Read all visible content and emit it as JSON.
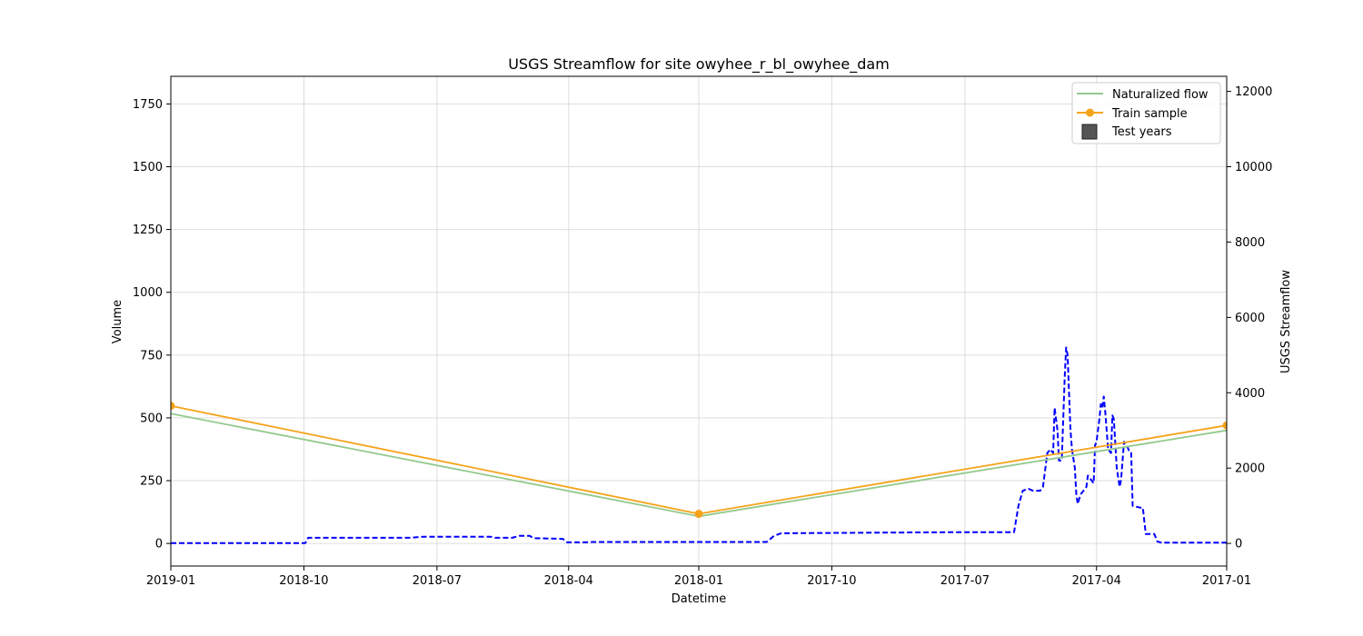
{
  "chart_data": {
    "type": "line",
    "title": "USGS Streamflow for site owyhee_r_bl_owyhee_dam",
    "xlabel": "Datetime",
    "ylabel": "Volume",
    "y2label": "USGS Streamflow",
    "x_axis_inverted": true,
    "xlim": [
      "2019-01-01",
      "2017-01-01"
    ],
    "ylim": [
      -90,
      1860
    ],
    "y2lim": [
      -600,
      12400
    ],
    "grid": true,
    "legend_position": "top-right",
    "x_ticks": [
      "2019-01",
      "2018-10",
      "2018-07",
      "2018-04",
      "2018-01",
      "2017-10",
      "2017-07",
      "2017-04",
      "2017-01"
    ],
    "y_ticks": [
      0,
      250,
      500,
      750,
      1000,
      1250,
      1500,
      1750
    ],
    "y2_ticks": [
      0,
      2000,
      4000,
      6000,
      8000,
      10000,
      12000
    ],
    "series": [
      {
        "name": "Naturalized flow",
        "axis": "left",
        "color": "#93c98c",
        "style": "solid",
        "points": [
          [
            "2019-01-01",
            517
          ],
          [
            "2018-01-01",
            108
          ],
          [
            "2017-01-01",
            450
          ]
        ]
      },
      {
        "name": "Train sample",
        "axis": "left",
        "color": "#f5a31a",
        "style": "solid-markers",
        "points": [
          [
            "2019-01-01",
            548
          ],
          [
            "2018-01-01",
            118
          ],
          [
            "2017-01-01",
            470
          ]
        ]
      },
      {
        "name": "Test years",
        "axis": "none",
        "color": "#555555",
        "style": "patch",
        "points": []
      },
      {
        "axis": "right",
        "color": "#0000ff",
        "style": "dashed",
        "points": [
          [
            "2019-01-01",
            10
          ],
          [
            "2018-09-30",
            10
          ],
          [
            "2018-09-28",
            150
          ],
          [
            "2018-07-20",
            150
          ],
          [
            "2018-07-10",
            180
          ],
          [
            "2018-05-25",
            180
          ],
          [
            "2018-05-22",
            150
          ],
          [
            "2018-05-10",
            150
          ],
          [
            "2018-05-05",
            200
          ],
          [
            "2018-04-28",
            200
          ],
          [
            "2018-04-25",
            140
          ],
          [
            "2018-04-05",
            120
          ],
          [
            "2018-04-02",
            30
          ],
          [
            "2018-03-20",
            30
          ],
          [
            "2018-03-15",
            40
          ],
          [
            "2018-01-01",
            40
          ],
          [
            "2017-11-15",
            40
          ],
          [
            "2017-11-10",
            200
          ],
          [
            "2017-11-05",
            270
          ],
          [
            "2017-07-05",
            300
          ],
          [
            "2017-06-01",
            300
          ],
          [
            "2017-05-28",
            300
          ],
          [
            "2017-05-25",
            1000
          ],
          [
            "2017-05-22",
            1400
          ],
          [
            "2017-05-18",
            1450
          ],
          [
            "2017-05-15",
            1400
          ],
          [
            "2017-05-10",
            1400
          ],
          [
            "2017-05-08",
            1500
          ],
          [
            "2017-05-05",
            2400
          ],
          [
            "2017-05-03",
            2500
          ],
          [
            "2017-05-01",
            2400
          ],
          [
            "2017-04-30",
            3600
          ],
          [
            "2017-04-28",
            3000
          ],
          [
            "2017-04-27",
            2200
          ],
          [
            "2017-04-25",
            2200
          ],
          [
            "2017-04-23",
            4400
          ],
          [
            "2017-04-22",
            5200
          ],
          [
            "2017-04-21",
            5000
          ],
          [
            "2017-04-19",
            3000
          ],
          [
            "2017-04-18",
            2500
          ],
          [
            "2017-04-16",
            2000
          ],
          [
            "2017-04-15",
            1300
          ],
          [
            "2017-04-14",
            1050
          ],
          [
            "2017-04-12",
            1300
          ],
          [
            "2017-04-10",
            1400
          ],
          [
            "2017-04-08",
            1500
          ],
          [
            "2017-04-07",
            1800
          ],
          [
            "2017-04-05",
            1700
          ],
          [
            "2017-04-03",
            1600
          ],
          [
            "2017-04-02",
            2600
          ],
          [
            "2017-04-01",
            2700
          ],
          [
            "2017-03-30",
            3300
          ],
          [
            "2017-03-29",
            3700
          ],
          [
            "2017-03-28",
            3600
          ],
          [
            "2017-03-27",
            3900
          ],
          [
            "2017-03-26",
            3500
          ],
          [
            "2017-03-24",
            2500
          ],
          [
            "2017-03-22",
            2400
          ],
          [
            "2017-03-21",
            3400
          ],
          [
            "2017-03-20",
            3300
          ],
          [
            "2017-03-18",
            2000
          ],
          [
            "2017-03-16",
            1500
          ],
          [
            "2017-03-15",
            1700
          ],
          [
            "2017-03-13",
            2700
          ],
          [
            "2017-03-11",
            2600
          ],
          [
            "2017-03-09",
            2400
          ],
          [
            "2017-03-08",
            2400
          ],
          [
            "2017-03-07",
            1000
          ],
          [
            "2017-03-02",
            950
          ],
          [
            "2017-02-28",
            950
          ],
          [
            "2017-02-26",
            250
          ],
          [
            "2017-02-20",
            250
          ],
          [
            "2017-02-18",
            50
          ],
          [
            "2017-02-15",
            20
          ],
          [
            "2017-01-01",
            20
          ]
        ]
      }
    ]
  }
}
